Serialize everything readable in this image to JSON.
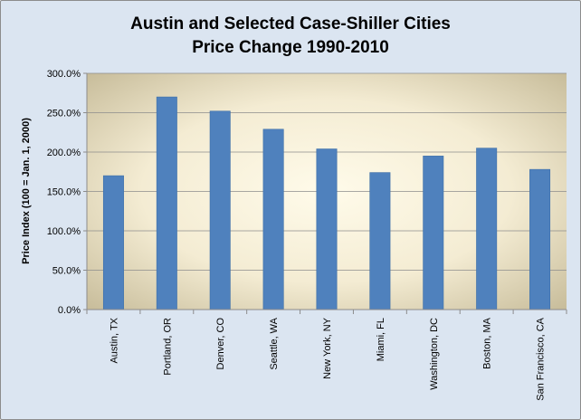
{
  "chart_data": {
    "type": "bar",
    "title_line1": "Austin and Selected Case-Shiller Cities",
    "title_line2": "Price Change 1990-2010",
    "xlabel": "",
    "ylabel": "Price Index (100 = Jan. 1, 2000)",
    "categories": [
      "Austin, TX",
      "Portland, OR",
      "Denver, CO",
      "Seattle, WA",
      "New York, NY",
      "Miami, FL",
      "Washington, DC",
      "Boston, MA",
      "San Francisco, CA"
    ],
    "values": [
      170,
      270,
      252,
      229,
      204,
      174,
      195,
      205,
      178
    ],
    "ylim": [
      0,
      300
    ],
    "yticks": [
      "0.0%",
      "50.0%",
      "100.0%",
      "150.0%",
      "200.0%",
      "250.0%",
      "300.0%"
    ],
    "grid": true,
    "legend": "none",
    "colors": {
      "bar": "#4f81bd",
      "bar_edge": "#3d6fa8",
      "frame_bg": "#dbe5f1",
      "plot_center": "#fffbea",
      "plot_edge": "#c8bd9b",
      "grid": "#8c8c8c"
    }
  }
}
